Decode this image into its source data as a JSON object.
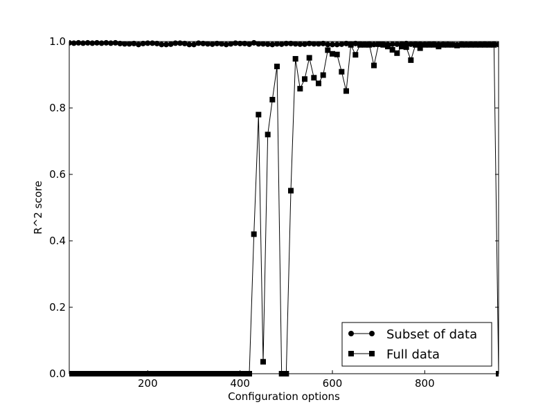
{
  "chart_data": {
    "type": "line",
    "title": "",
    "xlabel": "Configuration options",
    "ylabel": "R^2 score",
    "xlim": [
      30,
      960
    ],
    "ylim": [
      0.0,
      1.0
    ],
    "x_ticks": [
      200,
      400,
      600,
      800
    ],
    "x_tick_labels": [
      "200",
      "400",
      "600",
      "800"
    ],
    "y_ticks": [
      0.0,
      0.2,
      0.4,
      0.6,
      0.8,
      1.0
    ],
    "y_tick_labels": [
      "0.0",
      "0.2",
      "0.4",
      "0.6",
      "0.8",
      "1.0"
    ],
    "grid": false,
    "legend_position": "lower-right",
    "series": [
      {
        "name": "Subset of data",
        "marker": "circle",
        "color": "#000000",
        "x": [
          30,
          40,
          50,
          60,
          70,
          80,
          90,
          100,
          110,
          120,
          130,
          140,
          150,
          160,
          170,
          180,
          190,
          200,
          210,
          220,
          230,
          240,
          250,
          260,
          270,
          280,
          290,
          300,
          310,
          320,
          330,
          340,
          350,
          360,
          370,
          380,
          390,
          400,
          410,
          420,
          430,
          440,
          450,
          460,
          470,
          480,
          490,
          500,
          510,
          520,
          530,
          540,
          550,
          560,
          570,
          580,
          590,
          600,
          610,
          620,
          630,
          640,
          650,
          660,
          670,
          680,
          690,
          700,
          710,
          720,
          730,
          740,
          750,
          760,
          770,
          780,
          790,
          800,
          810,
          820,
          830,
          840,
          850,
          860,
          870,
          880,
          890,
          900,
          910,
          920,
          930,
          940,
          950,
          960
        ],
        "values": [
          0.996,
          0.995,
          0.996,
          0.995,
          0.996,
          0.995,
          0.996,
          0.995,
          0.996,
          0.995,
          0.996,
          0.994,
          0.993,
          0.993,
          0.994,
          0.991,
          0.994,
          0.995,
          0.995,
          0.994,
          0.991,
          0.991,
          0.992,
          0.995,
          0.995,
          0.994,
          0.991,
          0.991,
          0.995,
          0.994,
          0.993,
          0.992,
          0.994,
          0.993,
          0.991,
          0.993,
          0.995,
          0.994,
          0.994,
          0.992,
          0.996,
          0.993,
          0.993,
          0.992,
          0.991,
          0.993,
          0.992,
          0.994,
          0.994,
          0.993,
          0.992,
          0.992,
          0.994,
          0.993,
          0.993,
          0.994,
          0.991,
          0.991,
          0.991,
          0.992,
          0.994,
          0.993,
          0.994,
          0.993,
          0.992,
          0.993,
          0.991,
          0.992,
          0.992,
          0.991,
          0.992,
          0.992,
          0.993,
          0.994,
          0.992,
          0.993,
          0.992,
          0.991,
          0.992,
          0.993,
          0.991,
          0.991,
          0.991,
          0.99,
          0.99,
          0.993,
          0.991,
          0.992,
          0.992,
          0.992,
          0.993,
          0.992,
          0.993,
          0.991
        ]
      },
      {
        "name": "Full data",
        "marker": "square",
        "color": "#000000",
        "x": [
          30,
          40,
          50,
          60,
          70,
          80,
          90,
          100,
          110,
          120,
          130,
          140,
          150,
          160,
          170,
          180,
          190,
          200,
          210,
          220,
          230,
          240,
          250,
          260,
          270,
          280,
          290,
          300,
          310,
          320,
          330,
          340,
          350,
          360,
          370,
          380,
          390,
          400,
          410,
          420,
          430,
          440,
          450,
          460,
          470,
          480,
          490,
          500,
          510,
          520,
          530,
          540,
          550,
          560,
          570,
          580,
          590,
          600,
          610,
          620,
          630,
          640,
          650,
          660,
          670,
          680,
          690,
          700,
          710,
          720,
          730,
          740,
          750,
          760,
          770,
          780,
          790,
          800,
          810,
          820,
          830,
          840,
          850,
          860,
          870,
          880,
          890,
          900,
          910,
          920,
          930,
          940,
          950,
          960
        ],
        "values": [
          0,
          0,
          0,
          0,
          0,
          0,
          0,
          0,
          0,
          0,
          0,
          0,
          0,
          0,
          0,
          0,
          0,
          0,
          0,
          0,
          0,
          0,
          0,
          0,
          0,
          0,
          0,
          0,
          0,
          0,
          0,
          0,
          0,
          0,
          0,
          0,
          0,
          0,
          0,
          0,
          0.42,
          0.78,
          0.036,
          0.72,
          0.825,
          0.925,
          0,
          0,
          0.551,
          0.948,
          0.858,
          0.887,
          0.951,
          0.891,
          0.874,
          0.899,
          0.974,
          0.963,
          0.961,
          0.909,
          0.851,
          0.99,
          0.96,
          0.99,
          0.99,
          0.99,
          0.928,
          0.992,
          0.99,
          0.985,
          0.975,
          0.965,
          0.985,
          0.983,
          0.944,
          0.99,
          0.98,
          0.99,
          0.99,
          0.99,
          0.985,
          0.99,
          0.99,
          0.99,
          0.988,
          0.99,
          0.99,
          0.99,
          0.99,
          0.99,
          0.99,
          0.99,
          0.99,
          0
        ]
      }
    ]
  }
}
